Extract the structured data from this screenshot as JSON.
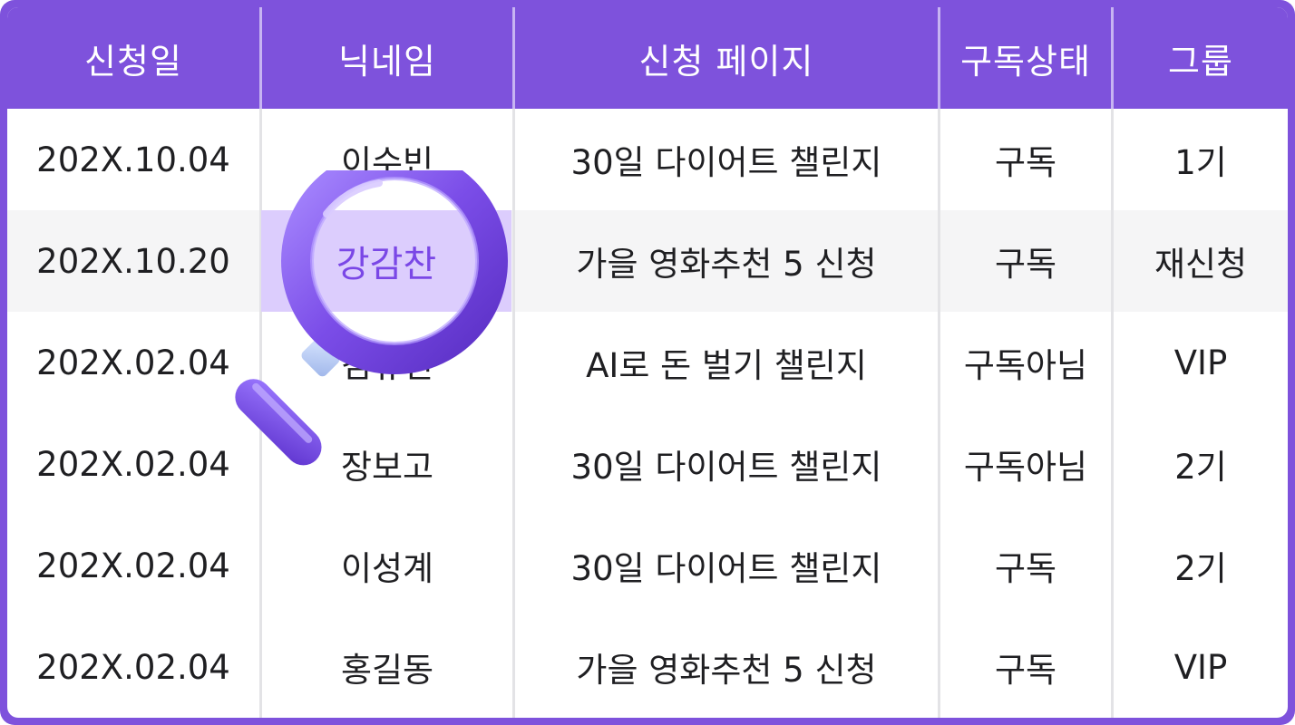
{
  "table": {
    "headers": [
      "신청일",
      "닉네임",
      "신청 페이지",
      "구독상태",
      "그룹"
    ],
    "rows": [
      [
        "202X.10.04",
        "이수빈",
        "30일 다이어트 챌린지",
        "구독",
        "1기"
      ],
      [
        "202X.10.20",
        "강감찬",
        "가을 영화추천 5 신청",
        "구독",
        "재신청"
      ],
      [
        "202X.02.04",
        "김유진",
        "AI로 돈 벌기 챌린지",
        "구독아님",
        "VIP"
      ],
      [
        "202X.02.04",
        "장보고",
        "30일 다이어트 챌린지",
        "구독아님",
        "2기"
      ],
      [
        "202X.02.04",
        "이성계",
        "30일 다이어트 챌린지",
        "구독",
        "2기"
      ],
      [
        "202X.02.04",
        "홍길동",
        "가을 영화추천 5 신청",
        "구독",
        "VIP"
      ]
    ],
    "highlighted_row": 1
  },
  "colors": {
    "accent": "#7e52dc",
    "highlight": "#dccdfd",
    "highlight_text": "#7a47e6",
    "alt_row": "#f5f5f6"
  },
  "icons": {
    "magnifier": "magnifying-glass-icon"
  }
}
